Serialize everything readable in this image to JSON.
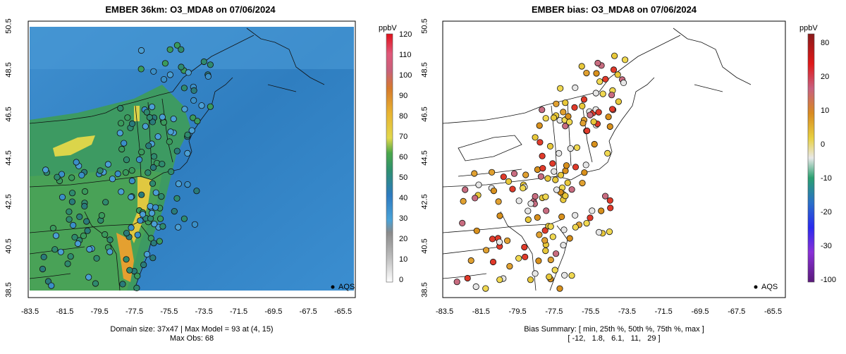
{
  "left_panel": {
    "title": "EMBER 36km: O3_MDA8 on 07/06/2024",
    "x_ticks": [
      "-83.5",
      "-81.5",
      "-79.5",
      "-77.5",
      "-75.5",
      "-73.5",
      "-71.5",
      "-69.5",
      "-67.5",
      "-65.5"
    ],
    "y_ticks": [
      "38.5",
      "40.5",
      "42.5",
      "44.5",
      "46.5",
      "48.5",
      "50.5"
    ],
    "legend_label": "AQS",
    "footer_line1": "Domain size: 37x47 | Max Model = 93 at (4, 15)",
    "footer_line2": "Max Obs: 68",
    "colorbar": {
      "unit": "ppbV",
      "labels": [
        "0",
        "10",
        "20",
        "30",
        "40",
        "50",
        "60",
        "70",
        "80",
        "90",
        "100",
        "110",
        "120"
      ]
    }
  },
  "right_panel": {
    "title": "EMBER bias: O3_MDA8 on 07/06/2024",
    "x_ticks": [
      "-83.5",
      "-81.5",
      "-79.5",
      "-77.5",
      "-75.5",
      "-73.5",
      "-71.5",
      "-69.5",
      "-67.5",
      "-65.5"
    ],
    "y_ticks": [
      "38.5",
      "40.5",
      "42.5",
      "44.5",
      "46.5",
      "48.5",
      "50.5"
    ],
    "legend_label": "AQS",
    "footer_line1": "Bias Summary: [ min, 25th %, 50th %, 75th %, max ]",
    "footer_line2": "[ -12,   1.8,   6.1,   11,   29 ]",
    "colorbar": {
      "unit": "ppbV",
      "labels": [
        "-100",
        "-30",
        "-20",
        "-10",
        "0",
        "10",
        "20",
        "80"
      ]
    }
  },
  "colors": {
    "ocean": "#2b7bbd",
    "land": "#3a9a6a",
    "high": "#e8d84a"
  }
}
